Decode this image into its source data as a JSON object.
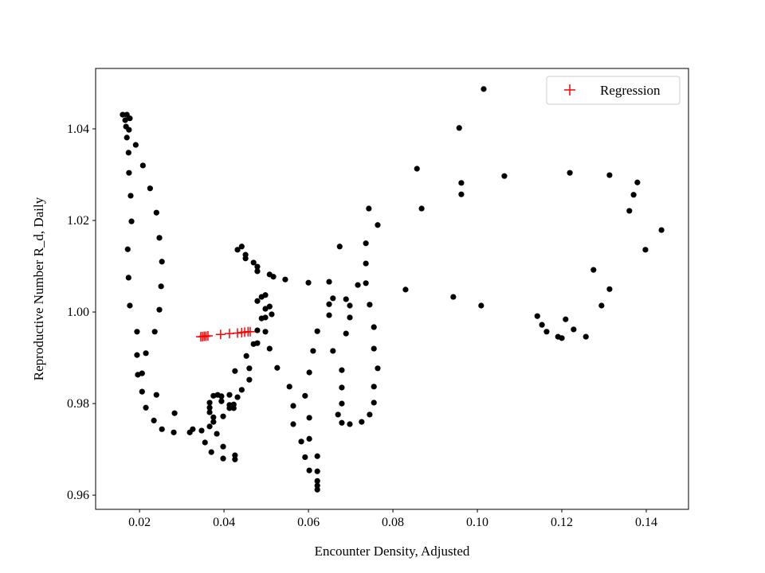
{
  "chart_data": {
    "type": "scatter",
    "title": "",
    "xlabel": "Encounter Density, Adjusted",
    "ylabel": "Reproductive Number R_d, Daily",
    "xlim": [
      0.0096,
      0.15
    ],
    "ylim": [
      0.9569,
      1.0532
    ],
    "xticks": [
      0.02,
      0.04,
      0.06,
      0.08,
      0.1,
      0.12,
      0.14
    ],
    "xtick_labels": [
      "0.02",
      "0.04",
      "0.06",
      "0.08",
      "0.10",
      "0.12",
      "0.14"
    ],
    "yticks": [
      0.96,
      0.98,
      1.0,
      1.02,
      1.04
    ],
    "ytick_labels": [
      "0.96",
      "0.98",
      "1.00",
      "1.02",
      "1.04"
    ],
    "grid": false,
    "legend_position": "top-right",
    "series": [
      {
        "marker": "dot",
        "color": "#000000",
        "points": [
          [
            0.016,
            1.0431
          ],
          [
            0.017,
            1.0431
          ],
          [
            0.0177,
            1.0423
          ],
          [
            0.0166,
            1.0419
          ],
          [
            0.0168,
            1.0405
          ],
          [
            0.0175,
            1.0398
          ],
          [
            0.017,
            1.0381
          ],
          [
            0.0191,
            1.0365
          ],
          [
            0.0174,
            1.0348
          ],
          [
            0.0208,
            1.032
          ],
          [
            0.0175,
            1.0304
          ],
          [
            0.0225,
            1.027
          ],
          [
            0.0179,
            1.0254
          ],
          [
            0.024,
            1.0217
          ],
          [
            0.0181,
            1.0198
          ],
          [
            0.0247,
            1.0162
          ],
          [
            0.0172,
            1.0137
          ],
          [
            0.0253,
            1.011
          ],
          [
            0.0174,
            1.0075
          ],
          [
            0.0251,
            1.0056
          ],
          [
            0.0177,
            1.0014
          ],
          [
            0.0247,
            1.0005
          ],
          [
            0.0194,
            0.9957
          ],
          [
            0.0236,
            0.9957
          ],
          [
            0.0194,
            0.9906
          ],
          [
            0.0215,
            0.991
          ],
          [
            0.0196,
            0.9863
          ],
          [
            0.0206,
            0.9866
          ],
          [
            0.0206,
            0.9826
          ],
          [
            0.024,
            0.9819
          ],
          [
            0.0215,
            0.9791
          ],
          [
            0.0283,
            0.9779
          ],
          [
            0.0234,
            0.9763
          ],
          [
            0.0253,
            0.9744
          ],
          [
            0.0281,
            0.9737
          ],
          [
            0.0319,
            0.9737
          ],
          [
            0.0326,
            0.9744
          ],
          [
            0.0347,
            0.9741
          ],
          [
            0.0355,
            0.9715
          ],
          [
            0.037,
            0.9694
          ],
          [
            0.0383,
            0.9734
          ],
          [
            0.0398,
            0.9706
          ],
          [
            0.0398,
            0.968
          ],
          [
            0.0426,
            0.9687
          ],
          [
            0.0426,
            0.9678
          ],
          [
            0.0366,
            0.975
          ],
          [
            0.0375,
            0.976
          ],
          [
            0.0375,
            0.977
          ],
          [
            0.0366,
            0.9781
          ],
          [
            0.0366,
            0.9791
          ],
          [
            0.0366,
            0.9802
          ],
          [
            0.0375,
            0.9817
          ],
          [
            0.0385,
            0.9819
          ],
          [
            0.0394,
            0.9816
          ],
          [
            0.0394,
            0.9805
          ],
          [
            0.0398,
            0.9772
          ],
          [
            0.0413,
            0.9819
          ],
          [
            0.0413,
            0.9797
          ],
          [
            0.0423,
            0.9798
          ],
          [
            0.0423,
            0.979
          ],
          [
            0.0413,
            0.979
          ],
          [
            0.0432,
            0.9814
          ],
          [
            0.0442,
            0.983
          ],
          [
            0.046,
            0.9852
          ],
          [
            0.0426,
            0.9871
          ],
          [
            0.046,
            0.9877
          ],
          [
            0.0453,
            0.9904
          ],
          [
            0.0526,
            0.9878
          ],
          [
            0.0508,
            0.992
          ],
          [
            0.047,
            0.993
          ],
          [
            0.0479,
            0.9932
          ],
          [
            0.0479,
            0.996
          ],
          [
            0.0498,
            0.9957
          ],
          [
            0.0489,
            0.9986
          ],
          [
            0.0498,
            0.9988
          ],
          [
            0.0513,
            0.9995
          ],
          [
            0.0498,
            1.0007
          ],
          [
            0.0508,
            1.0012
          ],
          [
            0.0479,
            1.0024
          ],
          [
            0.0489,
            1.0033
          ],
          [
            0.0498,
            1.0037
          ],
          [
            0.0432,
            1.0136
          ],
          [
            0.0442,
            1.0143
          ],
          [
            0.0451,
            1.0125
          ],
          [
            0.0451,
            1.0117
          ],
          [
            0.047,
            1.0108
          ],
          [
            0.0479,
            1.0099
          ],
          [
            0.0479,
            1.0089
          ],
          [
            0.0508,
            1.0082
          ],
          [
            0.0517,
            1.0077
          ],
          [
            0.0545,
            1.0071
          ],
          [
            0.06,
            1.0064
          ],
          [
            0.0649,
            1.0066
          ],
          [
            0.0674,
            1.0143
          ],
          [
            0.0736,
            1.015
          ],
          [
            0.0736,
            1.0106
          ],
          [
            0.0717,
            1.0059
          ],
          [
            0.0736,
            1.0063
          ],
          [
            0.0658,
            1.003
          ],
          [
            0.0689,
            1.0028
          ],
          [
            0.0698,
            1.0014
          ],
          [
            0.0649,
            1.0017
          ],
          [
            0.0745,
            1.0016
          ],
          [
            0.0649,
            0.9993
          ],
          [
            0.0698,
            0.9988
          ],
          [
            0.0755,
            0.9967
          ],
          [
            0.0621,
            0.9958
          ],
          [
            0.0689,
            0.9953
          ],
          [
            0.0611,
            0.9915
          ],
          [
            0.0658,
            0.9915
          ],
          [
            0.0755,
            0.992
          ],
          [
            0.0602,
            0.9868
          ],
          [
            0.0679,
            0.9873
          ],
          [
            0.0764,
            0.9877
          ],
          [
            0.0555,
            0.9837
          ],
          [
            0.0592,
            0.9817
          ],
          [
            0.0679,
            0.9835
          ],
          [
            0.0755,
            0.9837
          ],
          [
            0.0564,
            0.9795
          ],
          [
            0.0679,
            0.98
          ],
          [
            0.0755,
            0.9802
          ],
          [
            0.067,
            0.9776
          ],
          [
            0.0745,
            0.9776
          ],
          [
            0.0679,
            0.9758
          ],
          [
            0.0698,
            0.9755
          ],
          [
            0.0726,
            0.976
          ],
          [
            0.0602,
            0.9769
          ],
          [
            0.0564,
            0.9755
          ],
          [
            0.0583,
            0.9717
          ],
          [
            0.0602,
            0.9723
          ],
          [
            0.0592,
            0.9683
          ],
          [
            0.0621,
            0.9685
          ],
          [
            0.0602,
            0.9654
          ],
          [
            0.0621,
            0.9652
          ],
          [
            0.0621,
            0.9631
          ],
          [
            0.0621,
            0.9621
          ],
          [
            0.0621,
            0.9612
          ],
          [
            0.0743,
            1.0226
          ],
          [
            0.0764,
            1.019
          ],
          [
            0.083,
            1.0049
          ],
          [
            0.0857,
            1.0313
          ],
          [
            0.0868,
            1.0226
          ],
          [
            0.0943,
            1.0033
          ],
          [
            0.0957,
            1.0402
          ],
          [
            0.0962,
            1.0282
          ],
          [
            0.0962,
            1.0257
          ],
          [
            0.1009,
            1.0014
          ],
          [
            0.1015,
            1.0487
          ],
          [
            0.1064,
            1.0297
          ],
          [
            0.1142,
            0.9991
          ],
          [
            0.1153,
            0.9972
          ],
          [
            0.1164,
            0.9957
          ],
          [
            0.1191,
            0.9946
          ],
          [
            0.12,
            0.9943
          ],
          [
            0.1209,
            0.9984
          ],
          [
            0.1219,
            1.0304
          ],
          [
            0.1228,
            0.9962
          ],
          [
            0.1257,
            0.9946
          ],
          [
            0.1275,
            1.0092
          ],
          [
            0.1294,
            1.0014
          ],
          [
            0.1313,
            1.005
          ],
          [
            0.1313,
            1.0299
          ],
          [
            0.136,
            1.0221
          ],
          [
            0.137,
            1.0256
          ],
          [
            0.1379,
            1.0283
          ],
          [
            0.1398,
            1.0136
          ],
          [
            0.1436,
            1.0179
          ]
        ]
      },
      {
        "name": "Regression",
        "marker": "plus",
        "color": "#ff0000",
        "points": [
          [
            0.0345,
            0.9946
          ],
          [
            0.0349,
            0.9946
          ],
          [
            0.0353,
            0.9947
          ],
          [
            0.0357,
            0.9947
          ],
          [
            0.0362,
            0.9948
          ],
          [
            0.0392,
            0.9951
          ],
          [
            0.0413,
            0.9953
          ],
          [
            0.0432,
            0.9954
          ],
          [
            0.0442,
            0.9955
          ],
          [
            0.0449,
            0.9956
          ],
          [
            0.0457,
            0.9957
          ],
          [
            0.0462,
            0.9957
          ]
        ]
      }
    ],
    "legend": [
      "Regression"
    ]
  }
}
